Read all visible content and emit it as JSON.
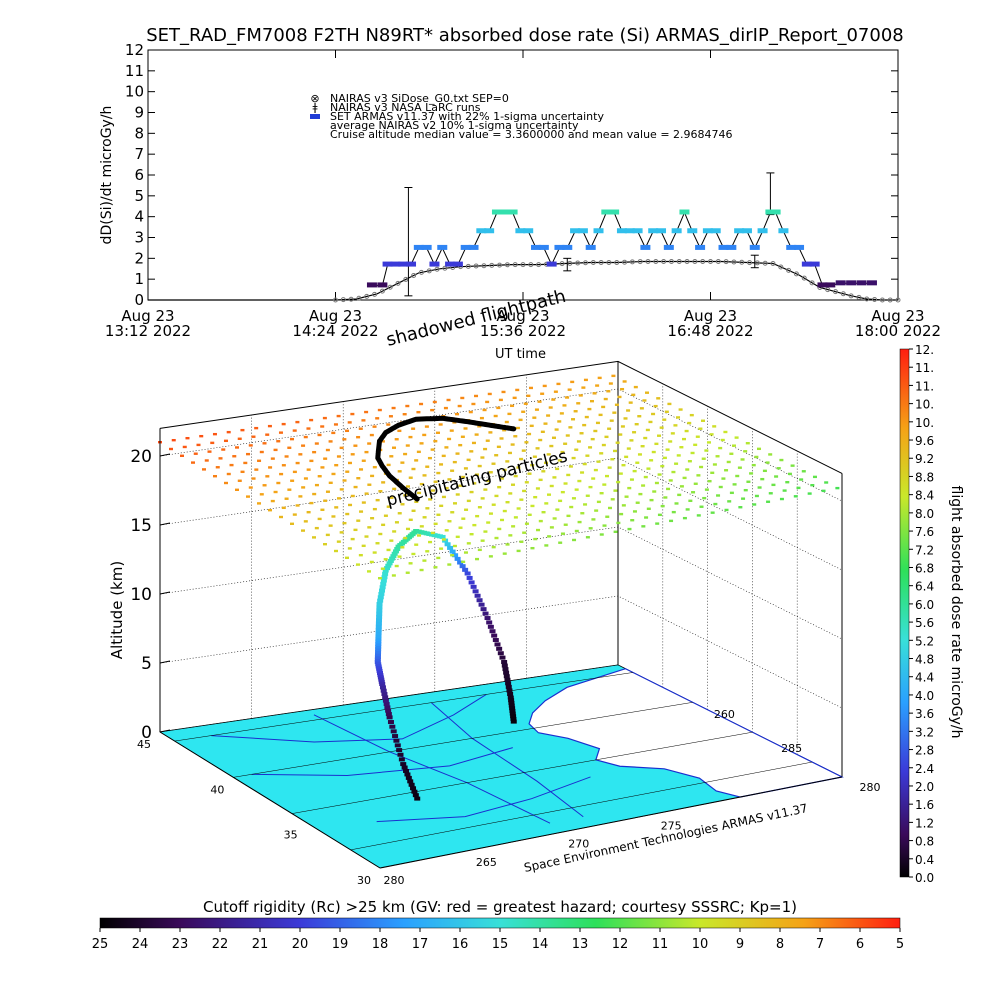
{
  "title": "SET_RAD_FM7008  F2TH N89RT* absorbed dose rate (Si) ARMAS_dirIP_Report_07008",
  "chart_data": [
    {
      "type": "line",
      "ylabel": "dD(Si)/dt microGy/h",
      "ylim": [
        0,
        12
      ],
      "yticks": [
        0,
        1,
        2,
        3,
        4,
        5,
        6,
        7,
        8,
        9,
        10,
        11,
        12
      ],
      "xticks": [
        {
          "t": 0,
          "line1": "Aug 23",
          "line2": "13:12 2022"
        },
        {
          "t": 72,
          "line1": "Aug 23",
          "line2": "14:24 2022"
        },
        {
          "t": 144,
          "line1": "Aug 23",
          "line2": "15:36 2022"
        },
        {
          "t": 216,
          "line1": "Aug 23",
          "line2": "16:48 2022"
        },
        {
          "t": 288,
          "line1": "Aug 23",
          "line2": "18:00 2022"
        }
      ],
      "xlim": [
        0,
        288
      ],
      "xunit": "minutes after 13:12 UT",
      "xlabel": "UT time",
      "legend": [
        {
          "marker": "⊗",
          "text": "NAIRAS v3 SiDose_G0.txt SEP=0"
        },
        {
          "marker": "ǂ",
          "text": "NAIRAS v3 NASA LaRC runs"
        },
        {
          "marker": "■",
          "text": "SET ARMAS v11.37 with 22% 1-sigma uncertainty",
          "color": "#1f3cd6"
        },
        {
          "marker": "",
          "text": "average NAIRAS v2 10% 1-sigma uncertainty"
        },
        {
          "marker": "",
          "text": "Cruise altitude median value = 3.3600000 and mean value = 2.9684746"
        }
      ],
      "series": [
        {
          "name": "NAIRAS v3 SiDose_G0.txt SEP=0",
          "x": [
            0,
            72,
            80,
            88,
            96,
            104,
            112,
            120,
            130,
            140,
            150,
            160,
            170,
            180,
            190,
            200,
            210,
            220,
            230,
            240,
            250,
            258,
            264,
            270,
            276,
            282,
            288
          ],
          "values": [
            0,
            0,
            0.05,
            0.3,
            0.8,
            1.3,
            1.5,
            1.6,
            1.65,
            1.7,
            1.7,
            1.75,
            1.8,
            1.8,
            1.85,
            1.85,
            1.85,
            1.85,
            1.8,
            1.75,
            1.2,
            0.6,
            0.4,
            0.2,
            0.05,
            0,
            0
          ]
        },
        {
          "name": "SET ARMAS v11.37",
          "points": [
            [
              86,
              0.7
            ],
            [
              90,
              0.7
            ],
            [
              92,
              1.7
            ],
            [
              95,
              1.7
            ],
            [
              98,
              1.7
            ],
            [
              101,
              1.7
            ],
            [
              104,
              2.5
            ],
            [
              107,
              2.5
            ],
            [
              110,
              1.7
            ],
            [
              113,
              2.5
            ],
            [
              116,
              1.7
            ],
            [
              119,
              1.7
            ],
            [
              122,
              2.5
            ],
            [
              125,
              2.5
            ],
            [
              128,
              3.3
            ],
            [
              131,
              3.3
            ],
            [
              134,
              4.2
            ],
            [
              137,
              4.2
            ],
            [
              140,
              4.2
            ],
            [
              143,
              3.3
            ],
            [
              146,
              3.3
            ],
            [
              149,
              2.5
            ],
            [
              152,
              2.5
            ],
            [
              155,
              1.7
            ],
            [
              158,
              2.5
            ],
            [
              161,
              2.5
            ],
            [
              164,
              3.3
            ],
            [
              167,
              3.3
            ],
            [
              170,
              2.5
            ],
            [
              173,
              3.3
            ],
            [
              176,
              4.2
            ],
            [
              179,
              4.2
            ],
            [
              182,
              3.3
            ],
            [
              185,
              3.3
            ],
            [
              188,
              3.3
            ],
            [
              191,
              2.5
            ],
            [
              194,
              3.3
            ],
            [
              197,
              3.3
            ],
            [
              200,
              2.5
            ],
            [
              203,
              3.3
            ],
            [
              206,
              4.2
            ],
            [
              209,
              3.3
            ],
            [
              212,
              2.5
            ],
            [
              215,
              3.3
            ],
            [
              218,
              3.3
            ],
            [
              221,
              2.5
            ],
            [
              224,
              2.5
            ],
            [
              227,
              3.3
            ],
            [
              230,
              3.3
            ],
            [
              233,
              2.5
            ],
            [
              236,
              3.3
            ],
            [
              239,
              4.2
            ],
            [
              241,
              4.2
            ],
            [
              244,
              3.3
            ],
            [
              247,
              2.5
            ],
            [
              250,
              2.5
            ],
            [
              253,
              1.7
            ],
            [
              256,
              1.7
            ],
            [
              259,
              0.7
            ],
            [
              262,
              0.7
            ],
            [
              266,
              0.8
            ],
            [
              270,
              0.8
            ],
            [
              274,
              0.8
            ],
            [
              278,
              0.8
            ]
          ]
        }
      ]
    },
    {
      "type": "scatter",
      "ylabel": "Altitude (km)",
      "zticks": [
        0,
        5,
        10,
        15,
        20
      ],
      "zlim": [
        0,
        22
      ],
      "lat_ticks": [
        30,
        35,
        40,
        45
      ],
      "lon_ticks": [
        260,
        265,
        270,
        275,
        280,
        285
      ],
      "lon_tick_labels_front": [
        "280",
        "265",
        "270",
        "275"
      ],
      "lon_tick_labels_right": [
        "260",
        "285",
        "280"
      ],
      "lat_tick_labels": [
        "30",
        "35",
        "40",
        "45"
      ],
      "annotations": [
        "shadowed flightpath",
        "precipitating particles",
        "UT time",
        "Space Environment Technologies ARMAS v11.37"
      ],
      "flight_track": {
        "points": [
          {
            "lon": 266.0,
            "lat": 35.0,
            "alt": 0.3
          },
          {
            "lon": 266.2,
            "lat": 36.2,
            "alt": 2.0
          },
          {
            "lon": 266.5,
            "lat": 37.5,
            "alt": 4.5
          },
          {
            "lon": 266.9,
            "lat": 38.5,
            "alt": 6.2
          },
          {
            "lon": 267.3,
            "lat": 39.3,
            "alt": 7.2
          },
          {
            "lon": 267.9,
            "lat": 40.0,
            "alt": 8.5
          },
          {
            "lon": 268.6,
            "lat": 40.8,
            "alt": 10.2
          },
          {
            "lon": 269.5,
            "lat": 41.5,
            "alt": 12.0
          },
          {
            "lon": 270.6,
            "lat": 42.0,
            "alt": 13.2
          },
          {
            "lon": 271.8,
            "lat": 42.3,
            "alt": 13.9
          },
          {
            "lon": 273.0,
            "lat": 42.0,
            "alt": 13.4
          },
          {
            "lon": 273.8,
            "lat": 41.3,
            "alt": 11.0
          },
          {
            "lon": 274.4,
            "lat": 40.7,
            "alt": 8.0
          },
          {
            "lon": 274.9,
            "lat": 40.2,
            "alt": 5.0
          },
          {
            "lon": 275.1,
            "lat": 40.0,
            "alt": 2.5
          },
          {
            "lon": 275.2,
            "lat": 39.9,
            "alt": 0.6
          }
        ],
        "dose": [
          0.2,
          0.4,
          0.8,
          1.8,
          2.8,
          4.2,
          5.0,
          5.5,
          6.0,
          6.2,
          5.4,
          2.6,
          1.2,
          0.6,
          0.3,
          0.1
        ]
      },
      "rigidity_layer": {
        "alt": 21,
        "values_from": 6,
        "values_to": 13
      }
    }
  ],
  "colorbar_right": {
    "label": "flight absorbed dose rate microGy/h",
    "ticks": [
      "0.0",
      "0.4",
      "0.8",
      "1.2",
      "1.6",
      "2.0",
      "2.4",
      "2.8",
      "3.2",
      "3.6",
      "4.0",
      "4.4",
      "4.8",
      "5.2",
      "5.6",
      "6.0",
      "6.4",
      "6.8",
      "7.2",
      "7.6",
      "8.0",
      "8.4",
      "8.8",
      "9.2",
      "9.6",
      "10.",
      "10.",
      "11.",
      "11.",
      "12."
    ],
    "range": [
      0,
      12
    ]
  },
  "colorbar_bottom": {
    "label": "Cutoff rigidity (Rc) >25 km (GV: red = greatest hazard; courtesy SSSRC; Kp=1)",
    "ticks": [
      "25",
      "24",
      "23",
      "22",
      "21",
      "20",
      "19",
      "18",
      "17",
      "16",
      "15",
      "14",
      "13",
      "12",
      "11",
      "10",
      "9",
      "8",
      "7",
      "6",
      "5"
    ],
    "range": [
      25,
      5
    ]
  },
  "colors": {
    "map_fill": "#2ee6f0",
    "coast": "#1a2fcf",
    "armas_marker": "#1f3cd6",
    "naiiras_marker": "#777777"
  }
}
